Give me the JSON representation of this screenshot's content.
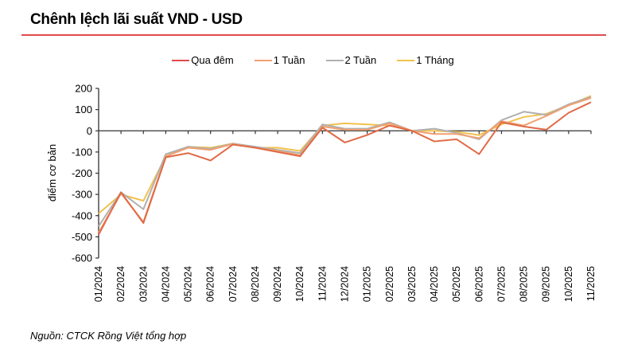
{
  "chart_data": {
    "type": "line",
    "title": "Chênh lệch lãi suất VND - USD",
    "xlabel": "",
    "ylabel": "điểm cơ bản",
    "ylim": [
      -600,
      200
    ],
    "yticks": [
      200,
      100,
      0,
      -100,
      -200,
      -300,
      -400,
      -500,
      -600
    ],
    "grid": false,
    "legend_position": "top",
    "categories": [
      "01/2024",
      "02/2024",
      "03/2024",
      "04/2024",
      "05/2024",
      "06/2024",
      "07/2024",
      "08/2024",
      "09/2024",
      "10/2024",
      "11/2024",
      "12/2024",
      "01/2025",
      "02/2025",
      "03/2025",
      "04/2025",
      "05/2025",
      "06/2025",
      "07/2025",
      "08/2025",
      "09/2025",
      "10/2025",
      "11/2025"
    ],
    "series": [
      {
        "name": "Qua đêm",
        "color": "#e06a45",
        "values": [
          -490,
          -290,
          -435,
          -125,
          -105,
          -140,
          -65,
          -80,
          -100,
          -120,
          15,
          -55,
          -20,
          25,
          0,
          -50,
          -40,
          -110,
          40,
          20,
          5,
          85,
          135
        ]
      },
      {
        "name": "1 Tuần",
        "color": "#f0a070",
        "values": [
          -480,
          -295,
          -430,
          -120,
          -80,
          -90,
          -62,
          -80,
          -95,
          -115,
          20,
          5,
          5,
          35,
          0,
          -15,
          -15,
          -35,
          45,
          25,
          70,
          120,
          155
        ]
      },
      {
        "name": "2 Tuần",
        "color": "#b0b0b0",
        "values": [
          -450,
          -290,
          -370,
          -110,
          -75,
          -85,
          -60,
          -75,
          -90,
          -105,
          30,
          10,
          10,
          40,
          0,
          10,
          -10,
          -40,
          50,
          90,
          75,
          125,
          160
        ]
      },
      {
        "name": "1 Tháng",
        "color": "#f2c14e",
        "values": [
          -390,
          -300,
          -330,
          -120,
          -75,
          -80,
          -60,
          -80,
          -80,
          -95,
          25,
          35,
          30,
          25,
          0,
          0,
          -5,
          -20,
          30,
          65,
          80,
          120,
          165
        ]
      }
    ]
  },
  "source": "Nguồn: CTCK Rồng Việt tổng hợp"
}
